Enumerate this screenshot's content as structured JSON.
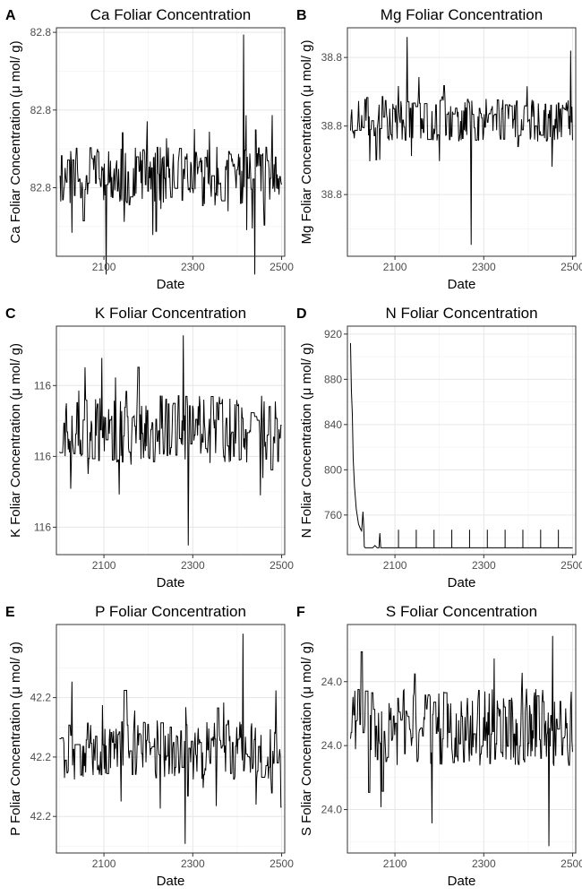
{
  "figure": {
    "panels": [
      {
        "tag": "A",
        "chart_data": {
          "type": "line",
          "title": "Ca Foliar Concentration",
          "xlabel": "Date",
          "ylabel": "Ca Foliar Concentration (μ mol/ g)",
          "xlim": [
            1993,
            2507
          ],
          "ylim": [
            0,
            1
          ],
          "x_ticks": [
            {
              "value": 2100,
              "label": "2100"
            },
            {
              "value": 2300,
              "label": "2300"
            },
            {
              "value": 2500,
              "label": "2500"
            }
          ],
          "y_ticks": [
            {
              "value": 0.3,
              "label": "82.8"
            },
            {
              "value": 0.64,
              "label": "82.8"
            },
            {
              "value": 0.98,
              "label": "82.8"
            }
          ],
          "grid": true,
          "series": [
            {
              "seed": 11,
              "start": 0.35,
              "base": 0.35,
              "amp": 0.13,
              "spikes": [
                [
                  2414,
                  0.97
                ],
                [
                  2105,
                  -0.08
                ],
                [
                  2440,
                  -0.08
                ]
              ]
            }
          ]
        }
      },
      {
        "tag": "B",
        "chart_data": {
          "type": "line",
          "title": "Mg Foliar Concentration",
          "xlabel": "Date",
          "ylabel": "Mg Foliar Concentration (μ mol/ g)",
          "xlim": [
            1993,
            2507
          ],
          "ylim": [
            0,
            1
          ],
          "x_ticks": [
            {
              "value": 2100,
              "label": "2100"
            },
            {
              "value": 2300,
              "label": "2300"
            },
            {
              "value": 2500,
              "label": "2500"
            }
          ],
          "y_ticks": [
            {
              "value": 0.27,
              "label": "38.8"
            },
            {
              "value": 0.57,
              "label": "38.8"
            },
            {
              "value": 0.87,
              "label": "38.8"
            }
          ],
          "grid": true,
          "series": [
            {
              "seed": 23,
              "start": 0.55,
              "base": 0.6,
              "amp": 0.1,
              "spikes": [
                [
                  2272,
                  0.05
                ],
                [
                  2128,
                  0.96
                ],
                [
                  2495,
                  0.9
                ]
              ]
            }
          ]
        }
      },
      {
        "tag": "C",
        "chart_data": {
          "type": "line",
          "title": "K Foliar Concentration",
          "xlabel": "Date",
          "ylabel": "K Foliar Concentration (μ mol/ g)",
          "xlim": [
            1993,
            2507
          ],
          "ylim": [
            0,
            1
          ],
          "x_ticks": [
            {
              "value": 2100,
              "label": "2100"
            },
            {
              "value": 2300,
              "label": "2300"
            },
            {
              "value": 2500,
              "label": "2500"
            }
          ],
          "y_ticks": [
            {
              "value": 0.12,
              "label": "116"
            },
            {
              "value": 0.43,
              "label": "116"
            },
            {
              "value": 0.74,
              "label": "116"
            }
          ],
          "grid": true,
          "series": [
            {
              "seed": 37,
              "start": 0.45,
              "base": 0.55,
              "amp": 0.15,
              "spikes": [
                [
                  2058,
                  0.82
                ],
                [
                  2278,
                  0.96
                ],
                [
                  2290,
                  0.04
                ]
              ]
            }
          ]
        }
      },
      {
        "tag": "D",
        "chart_data": {
          "type": "line",
          "title": "N Foliar Concentration",
          "xlabel": "Date",
          "ylabel": "N Foliar Concentration (μ mol/ g)",
          "xlim": [
            1993,
            2507
          ],
          "ylim": [
            725,
            927
          ],
          "x_ticks": [
            {
              "value": 2100,
              "label": "2100"
            },
            {
              "value": 2300,
              "label": "2300"
            },
            {
              "value": 2500,
              "label": "2500"
            }
          ],
          "y_ticks": [
            {
              "value": 760,
              "label": "760"
            },
            {
              "value": 800,
              "label": "800"
            },
            {
              "value": 840,
              "label": "840"
            },
            {
              "value": 880,
              "label": "880"
            },
            {
              "value": 920,
              "label": "920"
            }
          ],
          "grid": true,
          "series": [
            {
              "x": [
                2000,
                2002,
                2004,
                2006,
                2009,
                2013,
                2018,
                2022,
                2025,
                2028,
                2030,
                2031,
                2033,
                2035,
                2040,
                2046,
                2050,
                2055,
                2060,
                2064,
                2066,
                2068,
                2070,
                2500
              ],
              "y": [
                912,
                870,
                850,
                810,
                785,
                765,
                752,
                748,
                746,
                763,
                748,
                732,
                731,
                731,
                731,
                731,
                731,
                733,
                731,
                731,
                744,
                731,
                731,
                731
              ]
            }
          ],
          "periodic_spikes": {
            "start": 2108,
            "step": 40,
            "end": 2500,
            "base": 731,
            "peak": 747
          }
        }
      },
      {
        "tag": "E",
        "chart_data": {
          "type": "line",
          "title": "P Foliar Concentration",
          "xlabel": "Date",
          "ylabel": "P Foliar Concentration (μ mol/ g)",
          "xlim": [
            1993,
            2507
          ],
          "ylim": [
            0,
            1
          ],
          "x_ticks": [
            {
              "value": 2100,
              "label": "2100"
            },
            {
              "value": 2300,
              "label": "2300"
            },
            {
              "value": 2500,
              "label": "2500"
            }
          ],
          "y_ticks": [
            {
              "value": 0.16,
              "label": "42.2"
            },
            {
              "value": 0.42,
              "label": "42.2"
            },
            {
              "value": 0.68,
              "label": "42.2"
            }
          ],
          "grid": true,
          "series": [
            {
              "seed": 53,
              "start": 0.5,
              "base": 0.45,
              "amp": 0.13,
              "spikes": [
                [
                  2413,
                  0.96
                ],
                [
                  2283,
                  0.04
                ],
                [
                  2028,
                  0.75
                ]
              ]
            }
          ]
        }
      },
      {
        "tag": "F",
        "chart_data": {
          "type": "line",
          "title": "S Foliar Concentration",
          "xlabel": "Date",
          "ylabel": "S Foliar Concentration (μ mol/ g)",
          "xlim": [
            1993,
            2507
          ],
          "ylim": [
            0,
            1
          ],
          "x_ticks": [
            {
              "value": 2100,
              "label": "2100"
            },
            {
              "value": 2300,
              "label": "2300"
            },
            {
              "value": 2500,
              "label": "2500"
            }
          ],
          "y_ticks": [
            {
              "value": 0.19,
              "label": "24.0"
            },
            {
              "value": 0.47,
              "label": "24.0"
            },
            {
              "value": 0.75,
              "label": "24.0"
            }
          ],
          "grid": true,
          "series": [
            {
              "seed": 71,
              "start": 0.5,
              "base": 0.55,
              "amp": 0.17,
              "spikes": [
                [
                  2447,
                  0.03
                ],
                [
                  2183,
                  0.13
                ],
                [
                  2455,
                  0.95
                ]
              ]
            }
          ]
        }
      }
    ]
  }
}
